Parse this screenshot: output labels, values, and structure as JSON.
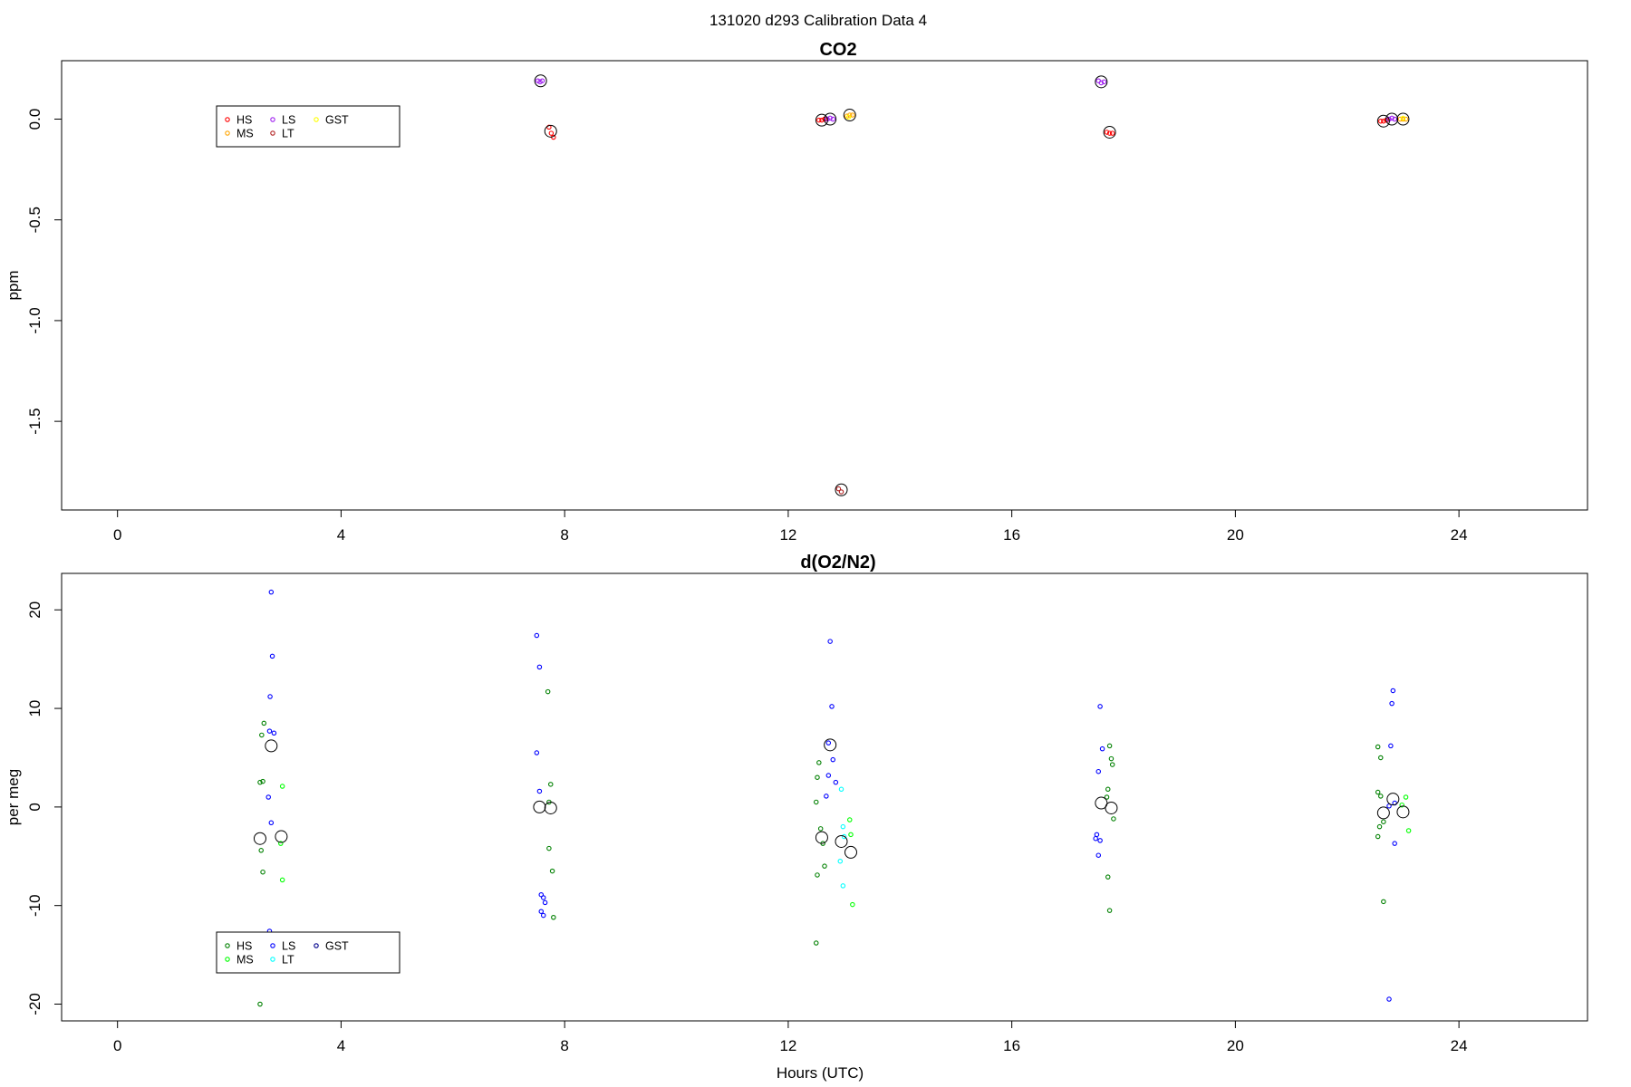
{
  "figure": {
    "title": "131020   d293   Calibration Data 4",
    "xlabel": "Hours (UTC)"
  },
  "chart_data": [
    {
      "type": "scatter",
      "title": "CO2",
      "ylabel": "ppm",
      "xlim": [
        -1.0,
        26.3
      ],
      "ylim": [
        -1.94,
        0.29
      ],
      "xticks": [
        0,
        4,
        8,
        12,
        16,
        20,
        24
      ],
      "yticks": [
        0.0,
        -0.5,
        -1.0,
        -1.5
      ],
      "ytick_labels": [
        "0.0",
        "-0.5",
        "-1.0",
        "-1.5"
      ],
      "grid": false,
      "legend": {
        "placement": "top-left",
        "entries": [
          {
            "label": "HS",
            "color": "#ff0000"
          },
          {
            "label": "MS",
            "color": "#ffa500"
          },
          {
            "label": "LS",
            "color": "#a020f0"
          },
          {
            "label": "LT",
            "color": "#b22222"
          },
          {
            "label": "GST",
            "color": "#ffff00"
          }
        ]
      },
      "series": [
        {
          "name": "HS",
          "color": "#ff0000",
          "points": [
            [
              7.72,
              -0.04
            ],
            [
              7.76,
              -0.07
            ],
            [
              7.8,
              -0.09
            ],
            [
              12.55,
              -0.005
            ],
            [
              12.6,
              -0.005
            ],
            [
              12.65,
              0.0
            ],
            [
              17.7,
              -0.065
            ],
            [
              17.75,
              -0.07
            ],
            [
              17.8,
              -0.07
            ],
            [
              22.6,
              -0.01
            ],
            [
              22.65,
              -0.01
            ],
            [
              22.7,
              -0.005
            ]
          ]
        },
        {
          "name": "MS",
          "color": "#ffa500",
          "points": [
            [
              13.05,
              0.015
            ],
            [
              13.1,
              0.02
            ],
            [
              13.15,
              0.02
            ],
            [
              22.95,
              0.0
            ],
            [
              23.0,
              0.0
            ],
            [
              23.05,
              0.0
            ]
          ]
        },
        {
          "name": "LS",
          "color": "#a020f0",
          "points": [
            [
              7.52,
              0.19
            ],
            [
              7.56,
              0.185
            ],
            [
              7.6,
              0.19
            ],
            [
              12.7,
              0.0
            ],
            [
              12.75,
              0.005
            ],
            [
              12.8,
              0.0
            ],
            [
              17.55,
              0.19
            ],
            [
              17.6,
              0.18
            ],
            [
              17.65,
              0.185
            ],
            [
              22.75,
              0.0
            ],
            [
              22.8,
              0.005
            ],
            [
              22.85,
              0.0
            ]
          ]
        },
        {
          "name": "LT",
          "color": "#b22222",
          "points": [
            [
              12.9,
              -1.835
            ],
            [
              12.95,
              -1.85
            ]
          ]
        },
        {
          "name": "GST",
          "color": "#ffff00",
          "points": [
            [
              13.08,
              0.01
            ],
            [
              23.0,
              0.005
            ]
          ]
        },
        {
          "name": "",
          "color": "#000000",
          "marker": "large-circle",
          "points": [
            [
              7.57,
              0.19
            ],
            [
              7.75,
              -0.06
            ],
            [
              12.6,
              -0.005
            ],
            [
              12.75,
              0.0
            ],
            [
              13.1,
              0.02
            ],
            [
              12.95,
              -1.84
            ],
            [
              17.6,
              0.185
            ],
            [
              17.75,
              -0.065
            ],
            [
              22.65,
              -0.01
            ],
            [
              22.8,
              0.0
            ],
            [
              23.0,
              0.0
            ]
          ]
        }
      ]
    },
    {
      "type": "scatter",
      "title": "d(O2/N2)",
      "ylabel": "per meg",
      "xlabel": "Hours (UTC)",
      "xlim": [
        -1.0,
        26.3
      ],
      "ylim": [
        -21.7,
        23.7
      ],
      "xticks": [
        0,
        4,
        8,
        12,
        16,
        20,
        24
      ],
      "yticks": [
        20,
        10,
        0,
        -10,
        -20
      ],
      "ytick_labels": [
        "20",
        "10",
        "0",
        "-10",
        "-20"
      ],
      "grid": false,
      "legend": {
        "placement": "bottom-left",
        "entries": [
          {
            "label": "HS",
            "color": "#008000"
          },
          {
            "label": "MS",
            "color": "#00ff00"
          },
          {
            "label": "LS",
            "color": "#0000ff"
          },
          {
            "label": "LT",
            "color": "#00ffff"
          },
          {
            "label": "GST",
            "color": "#00008b"
          }
        ]
      },
      "series": [
        {
          "name": "HS",
          "color": "#008000",
          "points": [
            [
              2.55,
              2.5
            ],
            [
              2.6,
              2.6
            ],
            [
              2.62,
              8.5
            ],
            [
              2.58,
              7.3
            ],
            [
              2.57,
              -4.4
            ],
            [
              2.6,
              -6.6
            ],
            [
              2.55,
              -20.0
            ],
            [
              7.7,
              11.7
            ],
            [
              7.75,
              2.3
            ],
            [
              7.72,
              0.5
            ],
            [
              7.72,
              -4.2
            ],
            [
              7.78,
              -6.5
            ],
            [
              7.8,
              -11.2
            ],
            [
              12.55,
              4.5
            ],
            [
              12.52,
              3.0
            ],
            [
              12.5,
              0.5
            ],
            [
              12.58,
              -2.2
            ],
            [
              12.62,
              -3.7
            ],
            [
              12.65,
              -6.0
            ],
            [
              12.52,
              -6.9
            ],
            [
              12.5,
              -13.8
            ],
            [
              17.75,
              6.2
            ],
            [
              17.78,
              4.9
            ],
            [
              17.8,
              4.3
            ],
            [
              17.72,
              1.8
            ],
            [
              17.7,
              1.0
            ],
            [
              17.82,
              -1.2
            ],
            [
              17.72,
              -7.1
            ],
            [
              17.75,
              -10.5
            ],
            [
              22.55,
              6.1
            ],
            [
              22.6,
              5.0
            ],
            [
              22.55,
              1.5
            ],
            [
              22.6,
              1.1
            ],
            [
              22.65,
              -1.5
            ],
            [
              22.58,
              -2.0
            ],
            [
              22.55,
              -3.0
            ],
            [
              22.65,
              -9.6
            ]
          ]
        },
        {
          "name": "MS",
          "color": "#00ff00",
          "points": [
            [
              2.95,
              2.1
            ],
            [
              2.92,
              -3.7
            ],
            [
              2.95,
              -7.4
            ],
            [
              13.1,
              -1.3
            ],
            [
              13.12,
              -2.8
            ],
            [
              13.15,
              -9.9
            ],
            [
              23.05,
              1.0
            ],
            [
              22.98,
              0.2
            ],
            [
              23.1,
              -2.4
            ]
          ]
        },
        {
          "name": "LS",
          "color": "#0000ff",
          "points": [
            [
              2.75,
              21.8
            ],
            [
              2.77,
              15.3
            ],
            [
              2.73,
              11.2
            ],
            [
              2.72,
              7.7
            ],
            [
              2.8,
              7.5
            ],
            [
              2.7,
              1.0
            ],
            [
              2.75,
              -1.6
            ],
            [
              2.72,
              -12.6
            ],
            [
              7.5,
              17.4
            ],
            [
              7.55,
              14.2
            ],
            [
              7.5,
              5.5
            ],
            [
              7.55,
              1.6
            ],
            [
              7.58,
              -8.9
            ],
            [
              7.62,
              -9.2
            ],
            [
              7.65,
              -9.7
            ],
            [
              7.58,
              -10.6
            ],
            [
              7.62,
              -11.0
            ],
            [
              12.75,
              16.8
            ],
            [
              12.78,
              10.2
            ],
            [
              12.72,
              6.5
            ],
            [
              12.8,
              4.8
            ],
            [
              12.72,
              3.2
            ],
            [
              12.85,
              2.5
            ],
            [
              12.68,
              1.1
            ],
            [
              17.58,
              10.2
            ],
            [
              17.62,
              5.9
            ],
            [
              17.55,
              3.6
            ],
            [
              17.52,
              -2.8
            ],
            [
              17.5,
              -3.2
            ],
            [
              17.58,
              -3.4
            ],
            [
              17.55,
              -4.9
            ],
            [
              22.82,
              11.8
            ],
            [
              22.8,
              10.5
            ],
            [
              22.78,
              6.2
            ],
            [
              22.85,
              0.4
            ],
            [
              22.75,
              0.1
            ],
            [
              22.85,
              -3.7
            ],
            [
              22.75,
              -19.5
            ]
          ]
        },
        {
          "name": "LT",
          "color": "#00ffff",
          "points": [
            [
              12.95,
              1.8
            ],
            [
              12.98,
              -2.0
            ],
            [
              13.0,
              -3.0
            ],
            [
              12.93,
              -5.5
            ],
            [
              12.98,
              -8.0
            ]
          ]
        },
        {
          "name": "GST",
          "color": "#00008b",
          "points": []
        },
        {
          "name": "",
          "color": "#000000",
          "marker": "large-circle",
          "points": [
            [
              2.55,
              -3.2
            ],
            [
              2.75,
              6.2
            ],
            [
              2.93,
              -3.0
            ],
            [
              7.55,
              0.0
            ],
            [
              7.75,
              -0.1
            ],
            [
              12.6,
              -3.1
            ],
            [
              12.75,
              6.3
            ],
            [
              12.95,
              -3.5
            ],
            [
              13.12,
              -4.6
            ],
            [
              17.6,
              0.4
            ],
            [
              17.78,
              -0.1
            ],
            [
              22.65,
              -0.6
            ],
            [
              22.82,
              0.8
            ],
            [
              23.0,
              -0.5
            ]
          ]
        }
      ]
    }
  ]
}
